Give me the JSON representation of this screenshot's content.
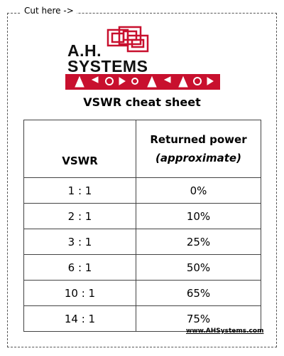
{
  "cut_label": "Cut here ->",
  "logo": {
    "line1": "A.H.",
    "line2": "SYSTEMS"
  },
  "title": "VSWR cheat sheet",
  "table": {
    "header": {
      "col1": "VSWR",
      "col2": "Returned power",
      "col2_note": "(approximate)"
    },
    "rows": [
      [
        "1 : 1",
        "0%"
      ],
      [
        "2 : 1",
        "10%"
      ],
      [
        "3 : 1",
        "25%"
      ],
      [
        "6 : 1",
        "50%"
      ],
      [
        "10 : 1",
        "65%"
      ],
      [
        "14 : 1",
        "75%"
      ]
    ]
  },
  "footer_url": "www.AHSystems.com"
}
